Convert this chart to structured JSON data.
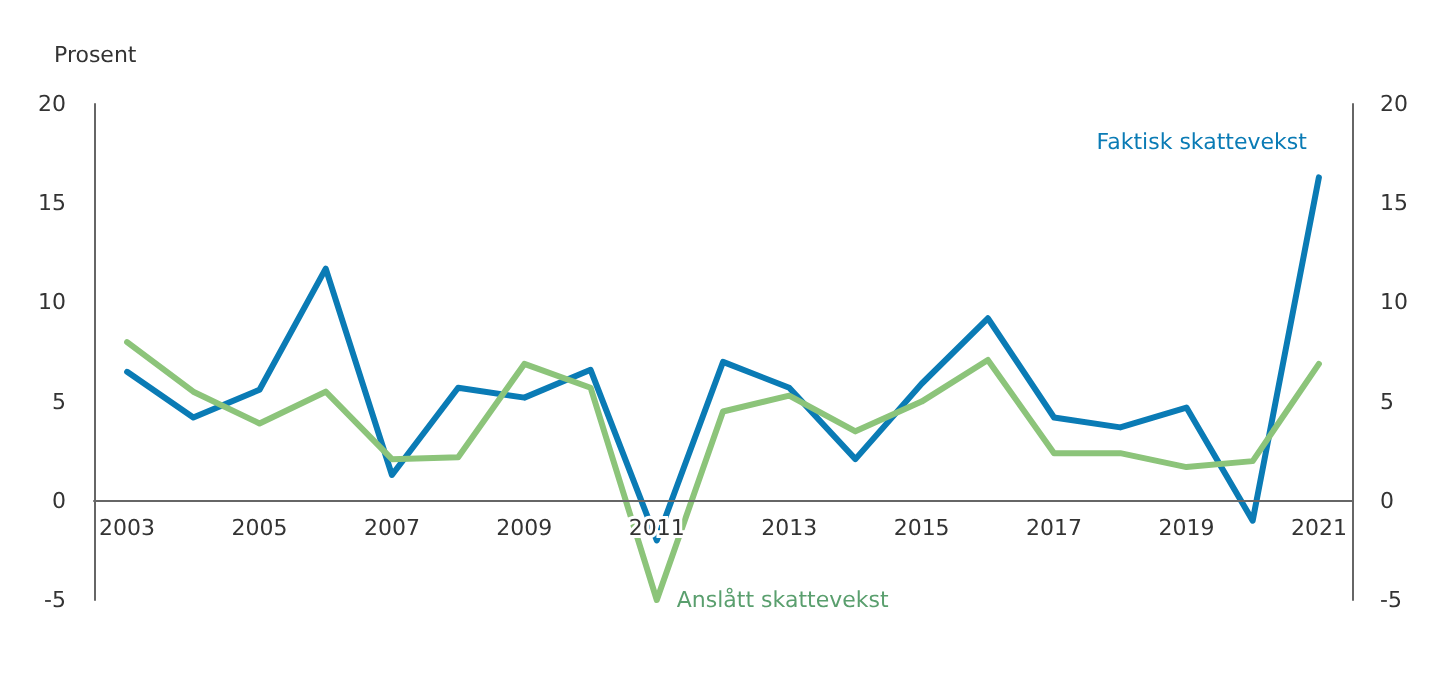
{
  "chart_data": {
    "type": "line",
    "ylabel": "Prosent",
    "categories": [
      "2003",
      null,
      "2005",
      null,
      "2007",
      null,
      "2009",
      null,
      "2011",
      null,
      "2013",
      null,
      "2015",
      null,
      "2017",
      null,
      "2019",
      null,
      "2021"
    ],
    "series": [
      {
        "name": "Faktisk skattevekst",
        "color": "#0a7bb5",
        "values": [
          6.5,
          4.2,
          5.6,
          11.7,
          1.3,
          5.7,
          5.2,
          6.6,
          -2.0,
          7.0,
          5.7,
          2.1,
          5.9,
          9.2,
          4.2,
          3.7,
          4.7,
          -1.0,
          16.3
        ]
      },
      {
        "name": "Anslått skattevekst",
        "color": "#8cc47a",
        "values": [
          8.0,
          5.5,
          3.9,
          5.5,
          2.1,
          2.2,
          6.9,
          5.7,
          -5.0,
          4.5,
          5.3,
          3.5,
          5.0,
          7.1,
          2.4,
          2.4,
          1.7,
          2.0,
          6.9
        ]
      }
    ],
    "ylim": [
      -5,
      20
    ],
    "yticks": [
      -5,
      0,
      5,
      10,
      15,
      20
    ],
    "y2lim": [
      -5,
      20
    ],
    "y2ticks": [
      -5,
      0,
      5,
      10,
      15,
      20
    ],
    "grid": false,
    "marker": "none",
    "line_style": "solid"
  }
}
